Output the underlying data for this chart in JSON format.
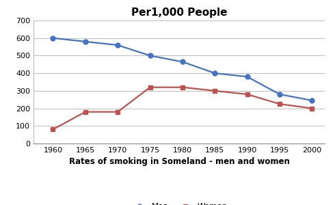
{
  "title": "Per1,000 People",
  "xlabel": "Rates of smoking in Someland - men and women",
  "years": [
    1960,
    1965,
    1970,
    1975,
    1980,
    1985,
    1990,
    1995,
    2000
  ],
  "men": [
    600,
    580,
    560,
    500,
    465,
    400,
    380,
    280,
    245
  ],
  "women": [
    80,
    180,
    180,
    320,
    320,
    300,
    280,
    225,
    200
  ],
  "men_color": "#4472C4",
  "women_color": "#C0504D",
  "ylim": [
    0,
    700
  ],
  "yticks": [
    0,
    100,
    200,
    300,
    400,
    500,
    600,
    700
  ],
  "background_color": "#FFFFFF",
  "grid_color": "#BBBBBB",
  "title_fontsize": 11,
  "tick_fontsize": 8,
  "xlabel_fontsize": 8.5,
  "legend_fontsize": 8.5
}
